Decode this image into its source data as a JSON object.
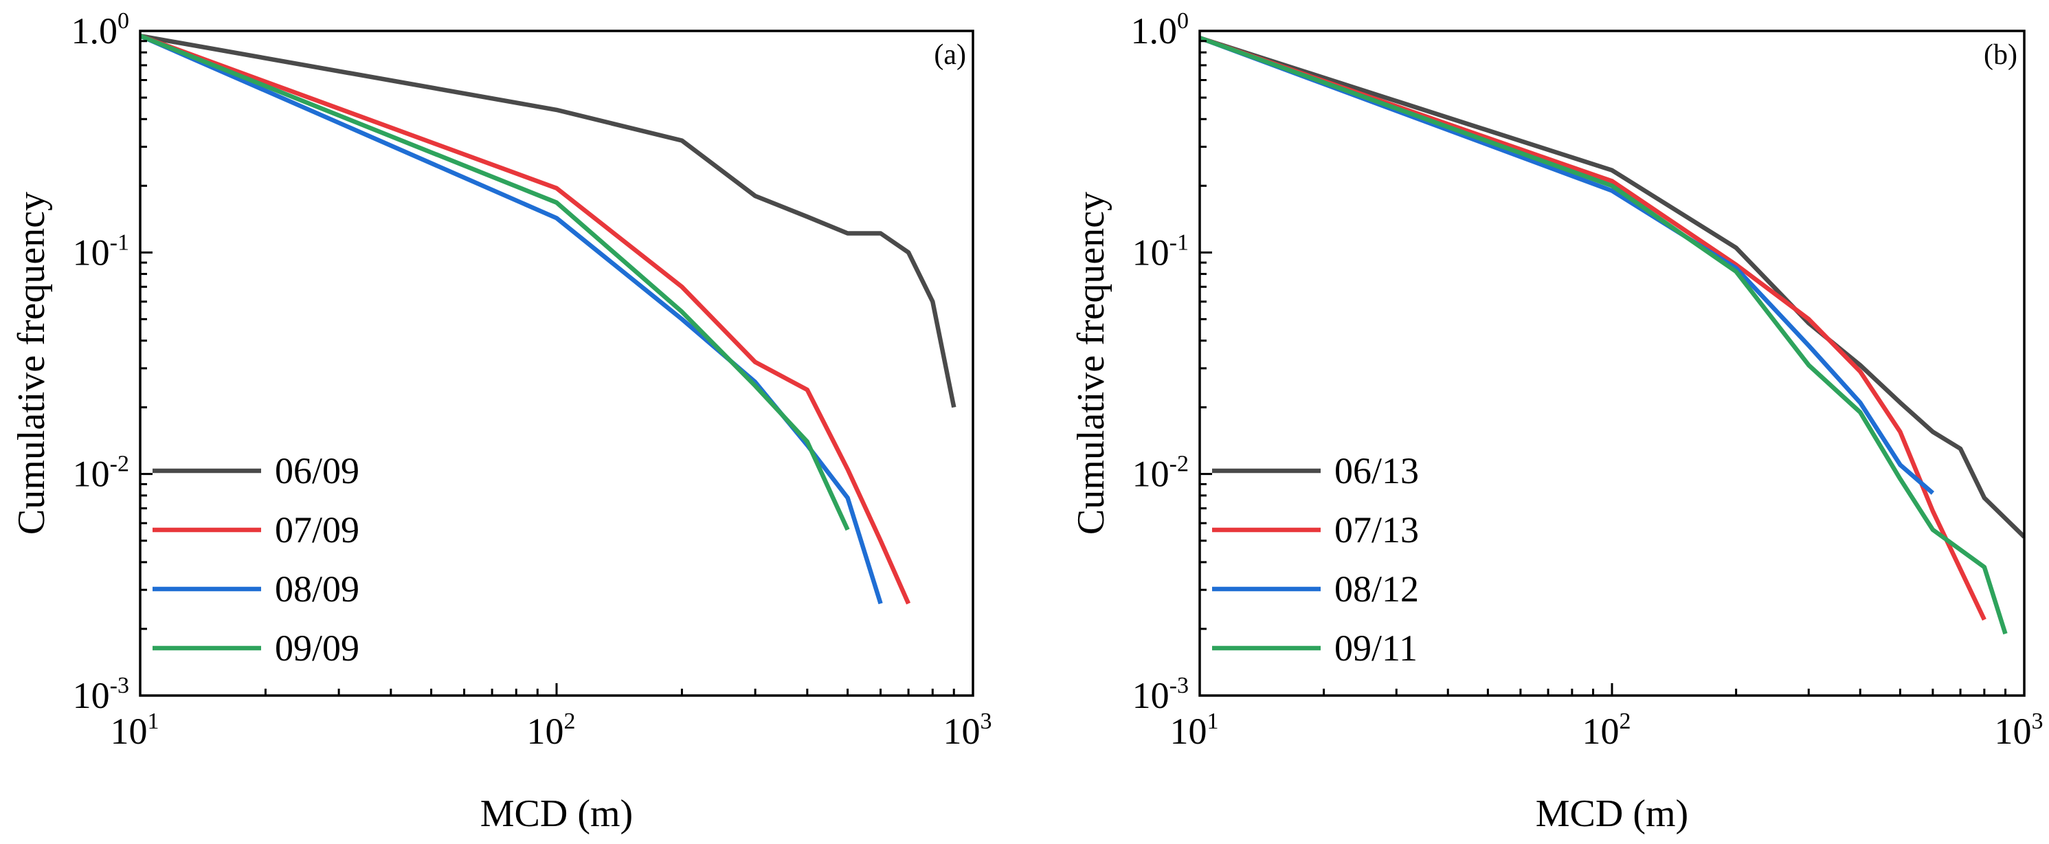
{
  "chart_data": [
    {
      "type": "line",
      "panel_label": "(a)",
      "xlabel": "MCD (m)",
      "ylabel": "Cumulative frequency",
      "xscale": "log",
      "yscale": "log",
      "xlim": [
        10,
        1000
      ],
      "ylim": [
        0.001,
        1
      ],
      "legend_position": "lower-left",
      "x_ticks": [
        {
          "base": "10",
          "exp": "1"
        },
        {
          "base": "10",
          "exp": "2"
        },
        {
          "base": "10",
          "exp": "3"
        }
      ],
      "y_ticks": [
        {
          "base": "10",
          "exp": "-3"
        },
        {
          "base": "10",
          "exp": "-2"
        },
        {
          "base": "10",
          "exp": "-1"
        },
        {
          "base": "1.0",
          "exp": "0"
        }
      ],
      "series": [
        {
          "name": "06/09",
          "color": "#4a4a4a",
          "x": [
            10,
            100,
            200,
            300,
            400,
            500,
            600,
            700,
            800,
            900
          ],
          "y": [
            0.95,
            0.44,
            0.32,
            0.18,
            0.145,
            0.122,
            0.122,
            0.1,
            0.06,
            0.02
          ]
        },
        {
          "name": "07/09",
          "color": "#e8373b",
          "x": [
            10,
            100,
            200,
            300,
            400,
            500,
            600,
            700
          ],
          "y": [
            0.95,
            0.195,
            0.07,
            0.032,
            0.024,
            0.0105,
            0.005,
            0.0026
          ]
        },
        {
          "name": "08/09",
          "color": "#1f6ed4",
          "x": [
            10,
            100,
            200,
            300,
            400,
            500,
            600
          ],
          "y": [
            0.95,
            0.143,
            0.05,
            0.026,
            0.0135,
            0.0078,
            0.0026
          ]
        },
        {
          "name": "09/09",
          "color": "#2ea35c",
          "x": [
            10,
            100,
            200,
            300,
            400,
            500
          ],
          "y": [
            0.95,
            0.168,
            0.054,
            0.025,
            0.014,
            0.0056
          ]
        }
      ]
    },
    {
      "type": "line",
      "panel_label": "(b)",
      "xlabel": "MCD (m)",
      "ylabel": "Cumulative frequency",
      "xscale": "log",
      "yscale": "log",
      "xlim": [
        10,
        1000
      ],
      "ylim": [
        0.001,
        1
      ],
      "legend_position": "lower-left",
      "x_ticks": [
        {
          "base": "10",
          "exp": "1"
        },
        {
          "base": "10",
          "exp": "2"
        },
        {
          "base": "10",
          "exp": "3"
        }
      ],
      "y_ticks": [
        {
          "base": "10",
          "exp": "-3"
        },
        {
          "base": "10",
          "exp": "-2"
        },
        {
          "base": "10",
          "exp": "-1"
        },
        {
          "base": "1.0",
          "exp": "0"
        }
      ],
      "series": [
        {
          "name": "06/13",
          "color": "#4a4a4a",
          "x": [
            10,
            100,
            200,
            300,
            400,
            500,
            600,
            700,
            800,
            1000
          ],
          "y": [
            0.93,
            0.235,
            0.105,
            0.048,
            0.031,
            0.021,
            0.0155,
            0.013,
            0.0078,
            0.0052
          ]
        },
        {
          "name": "07/13",
          "color": "#e8373b",
          "x": [
            10,
            100,
            200,
            300,
            400,
            500,
            600,
            800
          ],
          "y": [
            0.93,
            0.21,
            0.088,
            0.05,
            0.029,
            0.0155,
            0.0068,
            0.0022
          ]
        },
        {
          "name": "08/12",
          "color": "#1f6ed4",
          "x": [
            10,
            100,
            200,
            300,
            400,
            500,
            600
          ],
          "y": [
            0.93,
            0.19,
            0.085,
            0.038,
            0.021,
            0.011,
            0.0082
          ]
        },
        {
          "name": "09/11",
          "color": "#2ea35c",
          "x": [
            10,
            100,
            200,
            300,
            400,
            500,
            600,
            800,
            900
          ],
          "y": [
            0.93,
            0.2,
            0.082,
            0.031,
            0.019,
            0.0095,
            0.0056,
            0.0038,
            0.0019
          ]
        }
      ]
    }
  ]
}
